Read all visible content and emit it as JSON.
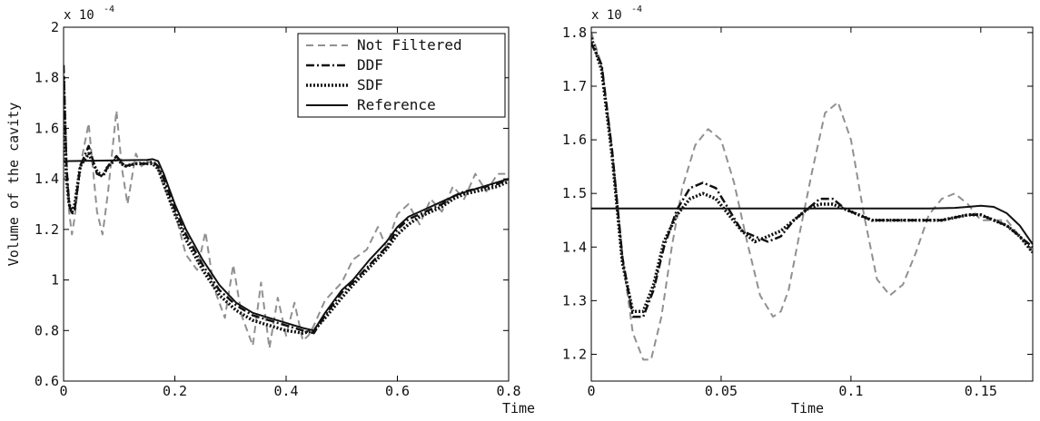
{
  "chart_data": [
    {
      "type": "line",
      "xlabel": "Time",
      "ylabel": "Volume of the cavity",
      "scale_label": "x 10",
      "scale_exponent": "-4",
      "xlim": [
        0,
        0.8
      ],
      "ylim": [
        0.6,
        2.0
      ],
      "xticks": [
        0,
        0.2,
        0.4,
        0.6,
        0.8
      ],
      "xtick_labels": [
        "0",
        "0.2",
        "0.4",
        "0.6",
        "0.8"
      ],
      "yticks": [
        0.6,
        0.8,
        1.0,
        1.2,
        1.4,
        1.6,
        1.8,
        2.0
      ],
      "ytick_labels": [
        "0.6",
        "0.8",
        "1",
        "1.2",
        "1.4",
        "1.6",
        "1.8",
        "2"
      ],
      "grid": false,
      "legend": {
        "position": "top-right",
        "entries": [
          "Not Filtered",
          "DDF",
          "SDF",
          "Reference"
        ]
      },
      "series": [
        {
          "name": "Not Filtered",
          "style": "dashed",
          "color": "#909090",
          "x": [
            0,
            0.005,
            0.01,
            0.015,
            0.02,
            0.03,
            0.045,
            0.06,
            0.07,
            0.08,
            0.095,
            0.105,
            0.115,
            0.13,
            0.14,
            0.15,
            0.16,
            0.17,
            0.18,
            0.2,
            0.22,
            0.24,
            0.255,
            0.27,
            0.29,
            0.305,
            0.32,
            0.34,
            0.355,
            0.37,
            0.385,
            0.4,
            0.415,
            0.43,
            0.44,
            0.45,
            0.47,
            0.5,
            0.52,
            0.545,
            0.565,
            0.58,
            0.6,
            0.62,
            0.64,
            0.66,
            0.68,
            0.7,
            0.72,
            0.74,
            0.76,
            0.78,
            0.8
          ],
          "y": [
            1.8,
            1.5,
            1.27,
            1.18,
            1.25,
            1.45,
            1.62,
            1.27,
            1.18,
            1.35,
            1.67,
            1.44,
            1.3,
            1.5,
            1.45,
            1.47,
            1.46,
            1.44,
            1.37,
            1.27,
            1.1,
            1.04,
            1.19,
            0.97,
            0.85,
            1.06,
            0.86,
            0.74,
            0.99,
            0.73,
            0.93,
            0.78,
            0.91,
            0.76,
            0.78,
            0.82,
            0.92,
            0.99,
            1.08,
            1.12,
            1.21,
            1.13,
            1.26,
            1.3,
            1.22,
            1.32,
            1.27,
            1.37,
            1.32,
            1.42,
            1.35,
            1.42,
            1.42
          ]
        },
        {
          "name": "DDF",
          "style": "dashdot",
          "color": "#111111",
          "x": [
            0,
            0.005,
            0.01,
            0.015,
            0.02,
            0.03,
            0.045,
            0.06,
            0.07,
            0.08,
            0.095,
            0.11,
            0.13,
            0.15,
            0.16,
            0.17,
            0.18,
            0.2,
            0.22,
            0.25,
            0.28,
            0.31,
            0.34,
            0.37,
            0.4,
            0.43,
            0.45,
            0.47,
            0.5,
            0.52,
            0.55,
            0.58,
            0.6,
            0.62,
            0.64,
            0.66,
            0.68,
            0.7,
            0.72,
            0.74,
            0.76,
            0.78,
            0.8
          ],
          "y": [
            1.85,
            1.45,
            1.3,
            1.26,
            1.28,
            1.45,
            1.53,
            1.42,
            1.41,
            1.45,
            1.49,
            1.45,
            1.46,
            1.46,
            1.47,
            1.45,
            1.4,
            1.28,
            1.18,
            1.06,
            0.96,
            0.9,
            0.86,
            0.84,
            0.82,
            0.8,
            0.79,
            0.86,
            0.95,
            0.99,
            1.06,
            1.13,
            1.2,
            1.24,
            1.26,
            1.28,
            1.3,
            1.33,
            1.35,
            1.36,
            1.37,
            1.38,
            1.4
          ]
        },
        {
          "name": "SDF",
          "style": "dotted",
          "color": "#111111",
          "x": [
            0,
            0.005,
            0.01,
            0.015,
            0.02,
            0.03,
            0.045,
            0.06,
            0.07,
            0.08,
            0.095,
            0.11,
            0.13,
            0.15,
            0.16,
            0.17,
            0.18,
            0.2,
            0.22,
            0.25,
            0.28,
            0.31,
            0.34,
            0.37,
            0.4,
            0.43,
            0.45,
            0.47,
            0.5,
            0.52,
            0.55,
            0.58,
            0.6,
            0.62,
            0.64,
            0.66,
            0.68,
            0.7,
            0.72,
            0.74,
            0.76,
            0.78,
            0.8
          ],
          "y": [
            1.8,
            1.4,
            1.3,
            1.27,
            1.3,
            1.45,
            1.5,
            1.43,
            1.41,
            1.45,
            1.48,
            1.45,
            1.46,
            1.46,
            1.46,
            1.44,
            1.38,
            1.26,
            1.16,
            1.04,
            0.94,
            0.88,
            0.84,
            0.82,
            0.8,
            0.79,
            0.8,
            0.85,
            0.93,
            0.98,
            1.05,
            1.12,
            1.18,
            1.22,
            1.25,
            1.27,
            1.29,
            1.32,
            1.34,
            1.35,
            1.36,
            1.37,
            1.39
          ]
        },
        {
          "name": "Reference",
          "style": "solid",
          "color": "#111111",
          "x": [
            0,
            0.15,
            0.16,
            0.17,
            0.18,
            0.2,
            0.22,
            0.25,
            0.28,
            0.31,
            0.34,
            0.37,
            0.4,
            0.43,
            0.45,
            0.47,
            0.5,
            0.52,
            0.55,
            0.58,
            0.6,
            0.62,
            0.65,
            0.68,
            0.71,
            0.74,
            0.77,
            0.8
          ],
          "y": [
            1.47,
            1.475,
            1.478,
            1.47,
            1.42,
            1.3,
            1.2,
            1.08,
            0.98,
            0.91,
            0.87,
            0.85,
            0.83,
            0.81,
            0.8,
            0.87,
            0.96,
            1.0,
            1.08,
            1.15,
            1.21,
            1.25,
            1.28,
            1.31,
            1.34,
            1.36,
            1.38,
            1.4
          ]
        }
      ]
    },
    {
      "type": "line",
      "xlabel": "Time",
      "ylabel": "",
      "scale_label": "x 10",
      "scale_exponent": "-4",
      "xlim": [
        0,
        0.17
      ],
      "ylim": [
        1.15,
        1.81
      ],
      "xticks": [
        0,
        0.05,
        0.1,
        0.15
      ],
      "xtick_labels": [
        "0",
        "0.05",
        "0.1",
        "0.15"
      ],
      "yticks": [
        1.2,
        1.3,
        1.4,
        1.5,
        1.6,
        1.7,
        1.8
      ],
      "ytick_labels": [
        "1.2",
        "1.3",
        "1.4",
        "1.5",
        "1.6",
        "1.7",
        "1.8"
      ],
      "grid": false,
      "series": [
        {
          "style": "dashed",
          "color": "#909090",
          "x": [
            0,
            0.004,
            0.008,
            0.012,
            0.016,
            0.02,
            0.023,
            0.027,
            0.031,
            0.035,
            0.04,
            0.045,
            0.05,
            0.055,
            0.06,
            0.065,
            0.07,
            0.073,
            0.076,
            0.08,
            0.085,
            0.09,
            0.095,
            0.1,
            0.105,
            0.11,
            0.115,
            0.12,
            0.125,
            0.13,
            0.135,
            0.14,
            0.145,
            0.15,
            0.155,
            0.16,
            0.165,
            0.17
          ],
          "y": [
            1.8,
            1.74,
            1.58,
            1.38,
            1.24,
            1.19,
            1.19,
            1.27,
            1.4,
            1.51,
            1.59,
            1.62,
            1.6,
            1.52,
            1.41,
            1.31,
            1.27,
            1.28,
            1.32,
            1.42,
            1.54,
            1.65,
            1.67,
            1.6,
            1.46,
            1.34,
            1.31,
            1.33,
            1.39,
            1.46,
            1.49,
            1.5,
            1.48,
            1.45,
            1.45,
            1.45,
            1.42,
            1.39
          ]
        },
        {
          "style": "dashdot",
          "color": "#111111",
          "x": [
            0,
            0.004,
            0.008,
            0.012,
            0.016,
            0.02,
            0.024,
            0.028,
            0.033,
            0.038,
            0.043,
            0.048,
            0.053,
            0.058,
            0.063,
            0.068,
            0.073,
            0.078,
            0.083,
            0.088,
            0.093,
            0.098,
            0.103,
            0.108,
            0.115,
            0.125,
            0.135,
            0.145,
            0.15,
            0.155,
            0.16,
            0.165,
            0.17
          ],
          "y": [
            1.78,
            1.74,
            1.58,
            1.38,
            1.27,
            1.27,
            1.32,
            1.4,
            1.47,
            1.51,
            1.52,
            1.51,
            1.47,
            1.43,
            1.42,
            1.41,
            1.42,
            1.45,
            1.47,
            1.49,
            1.49,
            1.47,
            1.46,
            1.45,
            1.45,
            1.45,
            1.45,
            1.46,
            1.46,
            1.45,
            1.44,
            1.42,
            1.4
          ]
        },
        {
          "style": "dotted",
          "color": "#111111",
          "x": [
            0,
            0.004,
            0.008,
            0.012,
            0.016,
            0.02,
            0.024,
            0.028,
            0.033,
            0.038,
            0.043,
            0.048,
            0.053,
            0.058,
            0.063,
            0.068,
            0.073,
            0.078,
            0.083,
            0.088,
            0.093,
            0.098,
            0.103,
            0.108,
            0.115,
            0.125,
            0.135,
            0.145,
            0.15,
            0.155,
            0.16,
            0.165,
            0.17
          ],
          "y": [
            1.79,
            1.73,
            1.57,
            1.37,
            1.28,
            1.28,
            1.33,
            1.41,
            1.46,
            1.49,
            1.5,
            1.49,
            1.46,
            1.43,
            1.41,
            1.42,
            1.43,
            1.45,
            1.47,
            1.48,
            1.48,
            1.47,
            1.46,
            1.45,
            1.45,
            1.45,
            1.45,
            1.46,
            1.46,
            1.45,
            1.44,
            1.42,
            1.39
          ]
        },
        {
          "style": "solid",
          "color": "#111111",
          "x": [
            0,
            0.13,
            0.14,
            0.145,
            0.15,
            0.155,
            0.16,
            0.165,
            0.17
          ],
          "y": [
            1.472,
            1.472,
            1.473,
            1.475,
            1.477,
            1.475,
            1.463,
            1.44,
            1.405
          ]
        }
      ]
    }
  ]
}
